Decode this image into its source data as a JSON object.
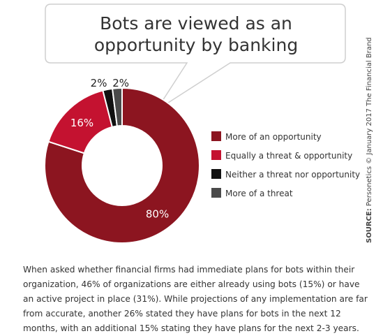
{
  "chart_data": {
    "type": "pie",
    "title": [
      "Bots are viewed as an",
      "opportunity by banking"
    ],
    "source_label": "SOURCE:",
    "source_text": " Personetics © January 2017 The Financial Brand",
    "legend_position": "right",
    "series": [
      {
        "name": "More of an opportunity",
        "value": 80,
        "label": "80%",
        "color": "#8c1520"
      },
      {
        "name": "Equally a threat & opportunity",
        "value": 16,
        "label": "16%",
        "color": "#c41230"
      },
      {
        "name": "Neither a threat nor opportunity",
        "value": 2,
        "label": "2%",
        "color": "#111111"
      },
      {
        "name": "More of a threat",
        "value": 2,
        "label": "2%",
        "color": "#4a4a4a"
      }
    ]
  },
  "caption": "When asked whether financial firms had immediate plans for bots within their organization, 46% of organizations are either already using bots (15%) or have an active project in place (31%). While projections of any implementation are far from accurate, another 26% stated they have plans for bots in the next 12 months, with an additional 15% stating they have plans for the next 2-3 years."
}
